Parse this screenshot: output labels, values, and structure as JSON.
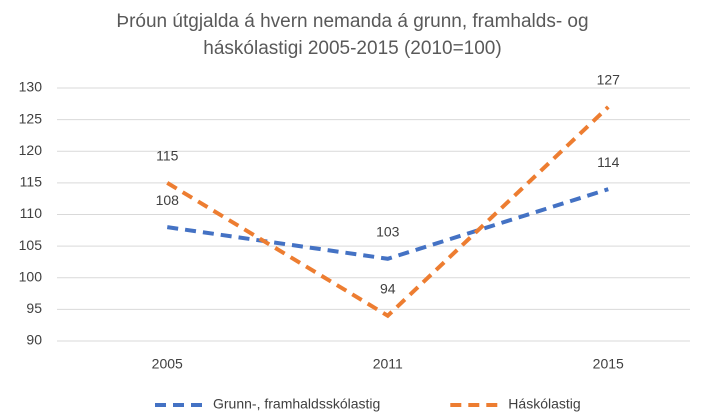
{
  "chart_data": {
    "type": "line",
    "title": "Þróun útgjalda á hvern nemanda á grunn, framhalds- og háskólastigi 2005-2015 (2010=100)",
    "categories": [
      "2005",
      "2011",
      "2015"
    ],
    "series": [
      {
        "name": "Grunn-, framhaldsskólastig",
        "color": "#4472c4",
        "values": [
          108,
          103,
          114
        ]
      },
      {
        "name": "Háskólastig",
        "color": "#ed7d31",
        "values": [
          115,
          94,
          127
        ]
      }
    ],
    "ylim": [
      90,
      130
    ],
    "yticks": [
      90,
      95,
      100,
      105,
      110,
      115,
      120,
      125,
      130
    ],
    "grid": true,
    "legend": "bottom"
  }
}
